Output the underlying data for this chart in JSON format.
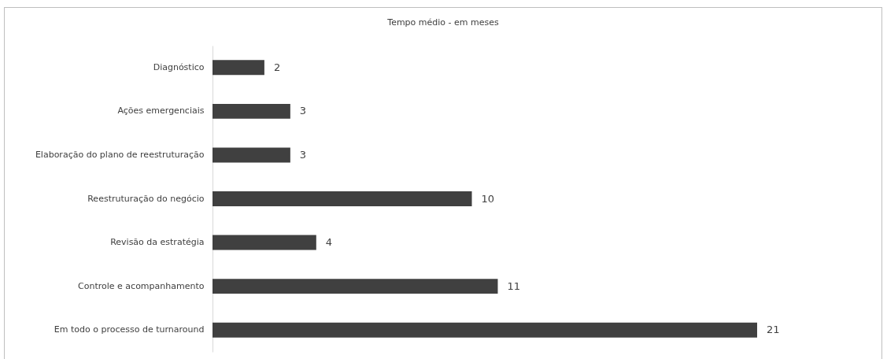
{
  "chart_data": {
    "type": "bar",
    "orientation": "horizontal",
    "title": "Tempo médio - em meses",
    "categories": [
      "Diagnóstico",
      "Ações emergenciais",
      "Elaboração do plano de reestruturação",
      "Reestruturação do negócio",
      "Revisão da estratégia",
      "Controle e acompanhamento",
      "Em todo o processo de turnaround"
    ],
    "values": [
      2,
      3,
      3,
      10,
      4,
      11,
      21
    ],
    "color": "#404040",
    "data_labels": true
  }
}
